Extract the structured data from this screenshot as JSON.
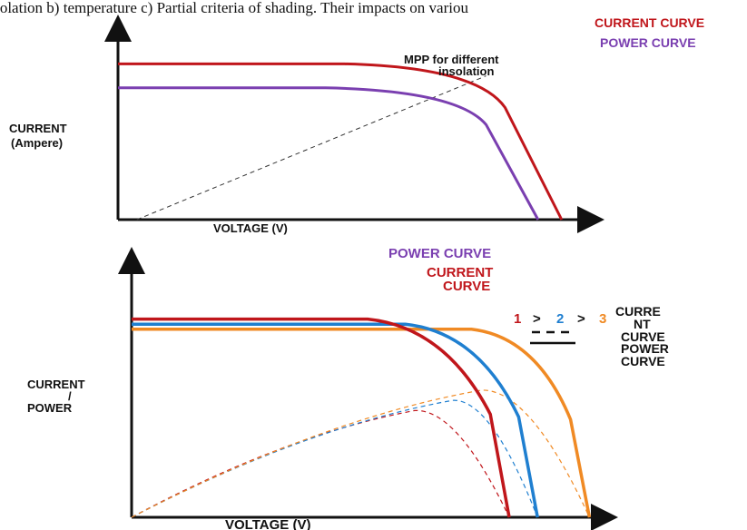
{
  "caption_fragment": "insolation b) temperature c) Partial criteria of shading. Their impacts on variou",
  "colors": {
    "red": "#c0161b",
    "purple": "#7a3fb0",
    "blue": "#1f7fd0",
    "orange": "#f08a24",
    "axis": "#111111"
  },
  "chart_data": [
    {
      "type": "line",
      "ylabel_line1": "CURRENT",
      "ylabel_line2": "(Ampere)",
      "xlabel": "VOLTAGE (V)",
      "legend": [
        {
          "label": "CURRENT CURVE",
          "color": "#c0161b"
        },
        {
          "label": "POWER CURVE",
          "color": "#7a3fb0"
        }
      ],
      "annotation_line1": "MPP for different",
      "annotation_line2": "insolation",
      "series": [
        {
          "color": "#c0161b",
          "plateau": 0.78,
          "knee_start": 0.48,
          "knee_x": 0.82,
          "end_x": 0.94
        },
        {
          "color": "#7a3fb0",
          "plateau": 0.66,
          "knee_start": 0.44,
          "knee_x": 0.78,
          "end_x": 0.89
        }
      ],
      "mpp_line": {
        "from": [
          0.04,
          0.0
        ],
        "to": [
          0.78,
          0.72
        ]
      }
    },
    {
      "type": "line",
      "ylabel_line1": "CURRENT",
      "ylabel_line2": "/",
      "ylabel_line3": "POWER",
      "xlabel": "VOLTAGE (V)",
      "legend_power": "POWER CURVE",
      "legend_current_line1": "CURRENT",
      "legend_current_line2": "CURVE",
      "order": {
        "n1": "1",
        "gt1": ">",
        "n2": "2",
        "gt2": ">",
        "n3": "3"
      },
      "key_current_line1": "CURRE",
      "key_current_line2": "NT",
      "key_current_line3": "CURVE",
      "key_power_line1": "POWER",
      "key_power_line2": "CURVE",
      "series": [
        {
          "name": "1",
          "color": "#c0161b",
          "plateau": 0.78,
          "knee_start": 0.5,
          "end_x": 0.8
        },
        {
          "name": "2",
          "color": "#1f7fd0",
          "plateau": 0.76,
          "knee_start": 0.58,
          "end_x": 0.86
        },
        {
          "name": "3",
          "color": "#f08a24",
          "plateau": 0.74,
          "knee_start": 0.72,
          "end_x": 0.97
        }
      ],
      "power_series": [
        {
          "color": "#c0161b",
          "peak_x": 0.6,
          "peak_y": 0.42,
          "end_x": 0.8
        },
        {
          "color": "#1f7fd0",
          "peak_x": 0.68,
          "peak_y": 0.46,
          "end_x": 0.86
        },
        {
          "color": "#f08a24",
          "peak_x": 0.74,
          "peak_y": 0.5,
          "end_x": 0.97
        }
      ]
    }
  ]
}
